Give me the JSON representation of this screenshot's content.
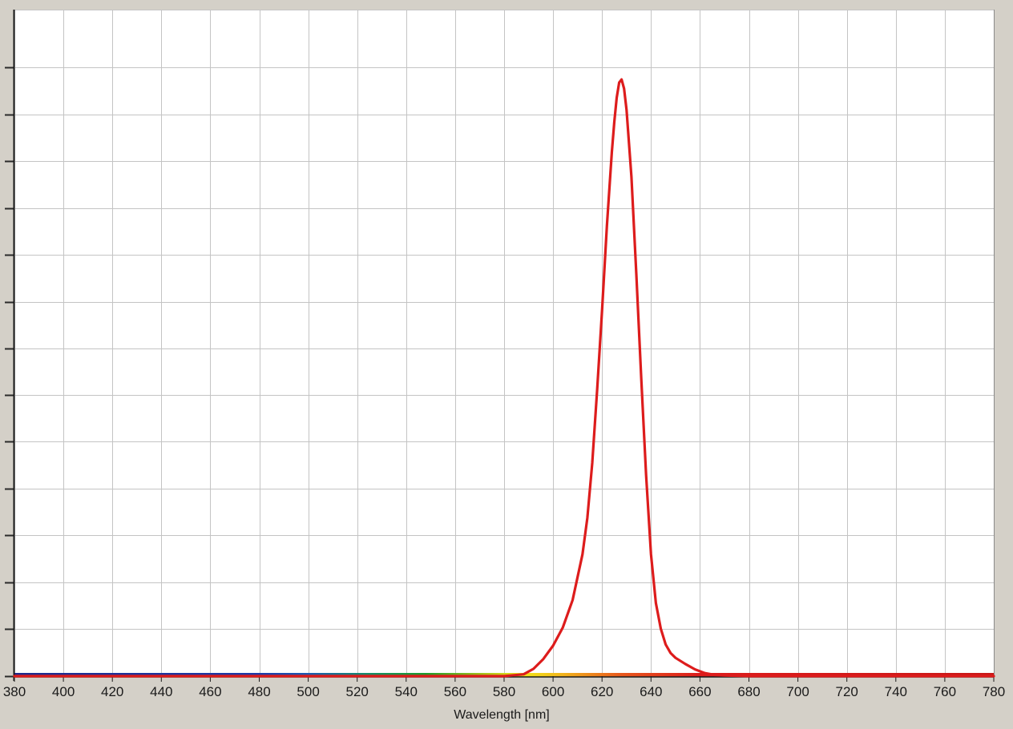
{
  "chart_data": {
    "type": "line",
    "title": "",
    "xlabel": "Wavelength [nm]",
    "ylabel": "",
    "xlim": [
      380,
      780
    ],
    "ylim": [
      0,
      1.0
    ],
    "grid": true,
    "x_ticks": [
      380,
      400,
      420,
      440,
      460,
      480,
      500,
      520,
      540,
      560,
      580,
      600,
      620,
      640,
      660,
      680,
      700,
      720,
      740,
      760,
      780
    ],
    "x_tick_labels": [
      "380",
      "400",
      "420",
      "440",
      "460",
      "480",
      "500",
      "520",
      "540",
      "560",
      "580",
      "600",
      "620",
      "640",
      "660",
      "680",
      "700",
      "720",
      "740",
      "760",
      "780"
    ],
    "y_ticks": [
      0,
      0.077,
      0.154,
      0.231,
      0.308,
      0.385,
      0.462,
      0.538,
      0.615,
      0.692,
      0.769,
      0.846,
      0.923,
      1.0
    ],
    "spectrum_bar": true,
    "series": [
      {
        "color": "#dd1c1c",
        "x": [
          380,
          400,
          420,
          440,
          460,
          480,
          500,
          520,
          540,
          560,
          580,
          588,
          592,
          596,
          600,
          604,
          608,
          612,
          614,
          616,
          618,
          620,
          622,
          624,
          625,
          626,
          627,
          628,
          629,
          630,
          632,
          634,
          636,
          638,
          640,
          642,
          644,
          646,
          648,
          650,
          654,
          658,
          662,
          666,
          670,
          680,
          700,
          720,
          740,
          760,
          780
        ],
        "y": [
          0.0,
          0.0,
          0.0,
          0.0,
          0.0,
          0.0,
          0.0,
          0.0,
          0.0,
          0.0,
          0.0,
          0.003,
          0.012,
          0.028,
          0.05,
          0.08,
          0.125,
          0.2,
          0.26,
          0.35,
          0.47,
          0.6,
          0.74,
          0.86,
          0.91,
          0.95,
          0.975,
          0.98,
          0.965,
          0.93,
          0.82,
          0.66,
          0.49,
          0.33,
          0.2,
          0.12,
          0.078,
          0.052,
          0.038,
          0.03,
          0.02,
          0.011,
          0.005,
          0.002,
          0.001,
          0.0,
          0.0,
          0.0,
          0.0,
          0.0,
          0.0
        ]
      }
    ]
  }
}
